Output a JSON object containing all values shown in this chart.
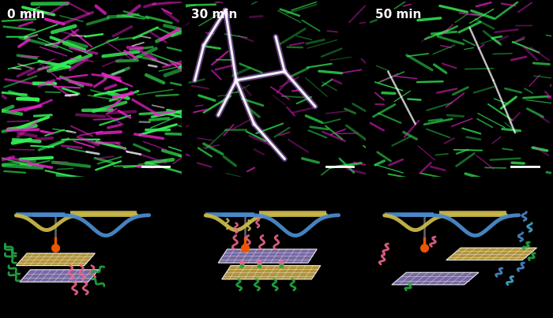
{
  "title_labels": [
    "0 min",
    "30 min",
    "50 min"
  ],
  "background_color": "#000000",
  "label_color": "#ffffff",
  "label_fontsize": 11,
  "fig_width": 7.0,
  "fig_height": 4.03,
  "gold_color": "#c8b84a",
  "blue_color": "#4a8acc",
  "pink_color": "#ee6688",
  "green_color": "#22aa44",
  "orange_color": "#ee5500",
  "teal_color": "#44aacc",
  "purple_tile": "#8877bb",
  "yellow_tile": "#ccaa44"
}
